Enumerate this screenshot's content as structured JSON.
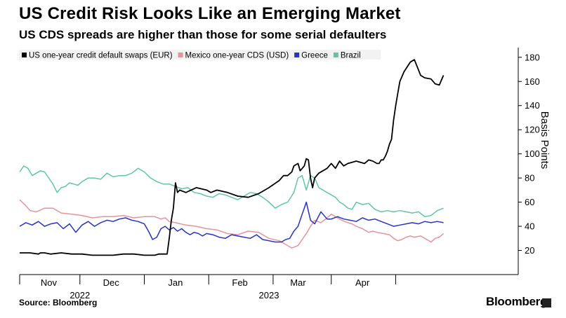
{
  "title": "US Credit Risk Looks Like an Emerging Market",
  "subtitle": "US CDS spreads are higher than those for some serial defaulters",
  "source": "Source: Bloomberg",
  "brand": "Bloomberg",
  "chart_data": {
    "type": "line",
    "title": "US Credit Risk Looks Like an Emerging Market",
    "subtitle": "US CDS spreads are higher than those for some serial defaulters",
    "xlabel": "",
    "ylabel": "Basis Points",
    "ylim": [
      0,
      188
    ],
    "yticks": [
      20,
      40,
      60,
      80,
      100,
      120,
      140,
      160,
      180
    ],
    "xlim": [
      0,
      240
    ],
    "x_month_ticks": [
      {
        "label": "Nov",
        "x": 14
      },
      {
        "label": "Dec",
        "x": 44
      },
      {
        "label": "Jan",
        "x": 75
      },
      {
        "label": "Feb",
        "x": 106
      },
      {
        "label": "Mar",
        "x": 134
      },
      {
        "label": "Apr",
        "x": 165
      }
    ],
    "x_year_labels": [
      {
        "label": "2022",
        "x": 29
      },
      {
        "label": "2023",
        "x": 120
      }
    ],
    "x_separators": [
      0,
      29,
      60,
      91,
      122,
      150,
      181
    ],
    "x_unit": "days since 2022-10-18",
    "legend_position": "top-left",
    "grid": false,
    "series": [
      {
        "name": "US one-year credit default swaps (EUR)",
        "color": "#000000",
        "x": [
          0,
          5,
          9,
          10,
          12,
          15,
          20,
          25,
          30,
          35,
          40,
          45,
          50,
          55,
          60,
          65,
          67,
          68,
          69,
          70,
          71,
          72,
          73,
          74,
          75,
          76,
          77,
          80,
          85,
          90,
          92,
          95,
          100,
          105,
          110,
          115,
          120,
          125,
          127,
          129,
          131,
          132,
          134,
          135,
          137,
          138,
          139,
          140,
          141,
          142,
          144,
          146,
          148,
          150,
          152,
          154,
          156,
          158,
          160,
          162,
          164,
          166,
          168,
          170,
          172,
          173,
          174,
          175,
          176,
          177,
          178,
          179,
          180,
          181,
          182,
          183,
          185,
          188,
          190,
          193,
          195,
          198,
          200,
          202,
          204
        ],
        "values": [
          18,
          18,
          17,
          18,
          18,
          17,
          18,
          17,
          17,
          16,
          16,
          16,
          17,
          17,
          16,
          16,
          17,
          17,
          17,
          17,
          17,
          30,
          45,
          55,
          76,
          68,
          70,
          68,
          72,
          70,
          68,
          70,
          68,
          65,
          64,
          67,
          72,
          78,
          82,
          82,
          85,
          90,
          92,
          86,
          90,
          96,
          95,
          80,
          72,
          80,
          84,
          86,
          88,
          92,
          88,
          94,
          90,
          92,
          93,
          94,
          93,
          92,
          95,
          94,
          92,
          92,
          95,
          95,
          98,
          102,
          108,
          112,
          128,
          140,
          150,
          160,
          168,
          176,
          178,
          165,
          163,
          162,
          158,
          157,
          165
        ]
      },
      {
        "name": "Mexico one-year CDS (USD)",
        "color": "#e8939b",
        "x": [
          0,
          3,
          5,
          8,
          12,
          16,
          20,
          25,
          30,
          35,
          40,
          45,
          50,
          55,
          60,
          65,
          68,
          70,
          72,
          75,
          80,
          85,
          90,
          95,
          100,
          105,
          110,
          115,
          120,
          125,
          128,
          131,
          134,
          136,
          138,
          140,
          142,
          145,
          148,
          150,
          153,
          155,
          158,
          160,
          162,
          165,
          168,
          170,
          172,
          175,
          178,
          180,
          182,
          184,
          186,
          188,
          190,
          193,
          195,
          198,
          200,
          202,
          204
        ],
        "values": [
          62,
          57,
          53,
          52,
          55,
          55,
          51,
          50,
          49,
          47,
          48,
          48,
          49,
          47,
          48,
          48,
          46,
          47,
          44,
          43,
          41,
          40,
          38,
          37,
          34,
          33,
          36,
          35,
          30,
          28,
          25,
          22,
          24,
          29,
          34,
          40,
          45,
          43,
          47,
          50,
          47,
          45,
          43,
          42,
          40,
          38,
          35,
          36,
          35,
          34,
          33,
          30,
          28,
          29,
          31,
          32,
          31,
          32,
          30,
          27,
          30,
          31,
          34
        ]
      },
      {
        "name": "Greece",
        "color": "#2533c9",
        "x": [
          0,
          3,
          6,
          9,
          12,
          15,
          18,
          21,
          24,
          27,
          30,
          33,
          36,
          39,
          42,
          45,
          48,
          51,
          54,
          57,
          60,
          62,
          64,
          66,
          68,
          70,
          72,
          74,
          76,
          78,
          80,
          82,
          84,
          86,
          88,
          90,
          93,
          96,
          99,
          102,
          105,
          108,
          111,
          114,
          117,
          120,
          123,
          126,
          128,
          130,
          132,
          134,
          136,
          137,
          138,
          140,
          142,
          145,
          148,
          150,
          153,
          156,
          159,
          162,
          165,
          168,
          171,
          174,
          177,
          180,
          183,
          186,
          189,
          192,
          195,
          198,
          201,
          204
        ],
        "values": [
          40,
          43,
          41,
          44,
          40,
          42,
          43,
          38,
          42,
          35,
          41,
          44,
          40,
          43,
          45,
          44,
          46,
          47,
          45,
          44,
          42,
          36,
          29,
          31,
          38,
          40,
          37,
          39,
          36,
          38,
          35,
          33,
          35,
          34,
          32,
          34,
          33,
          31,
          30,
          33,
          32,
          31,
          30,
          33,
          29,
          28,
          27,
          27,
          29,
          30,
          36,
          40,
          50,
          55,
          60,
          45,
          42,
          52,
          46,
          46,
          48,
          46,
          45,
          44,
          47,
          45,
          46,
          44,
          42,
          40,
          41,
          42,
          43,
          42,
          44,
          43,
          44,
          43
        ]
      },
      {
        "name": "Brazil",
        "color": "#5fc7a8",
        "x": [
          0,
          2,
          4,
          6,
          8,
          10,
          12,
          14,
          16,
          18,
          20,
          22,
          24,
          26,
          28,
          30,
          33,
          36,
          39,
          42,
          45,
          48,
          51,
          54,
          57,
          60,
          63,
          66,
          69,
          72,
          75,
          78,
          81,
          84,
          87,
          90,
          93,
          96,
          99,
          102,
          105,
          108,
          111,
          114,
          117,
          120,
          123,
          126,
          129,
          132,
          134,
          136,
          138,
          140,
          142,
          144,
          146,
          148,
          150,
          152,
          154,
          156,
          158,
          160,
          162,
          165,
          168,
          171,
          174,
          177,
          180,
          183,
          186,
          189,
          192,
          195,
          198,
          201,
          204
        ],
        "values": [
          85,
          90,
          88,
          82,
          84,
          86,
          85,
          80,
          75,
          68,
          72,
          73,
          76,
          75,
          74,
          77,
          80,
          80,
          79,
          84,
          81,
          82,
          82,
          84,
          88,
          85,
          80,
          77,
          75,
          75,
          73,
          71,
          72,
          68,
          67,
          65,
          64,
          67,
          66,
          64,
          62,
          65,
          68,
          67,
          64,
          60,
          55,
          58,
          60,
          68,
          80,
          82,
          70,
          82,
          80,
          72,
          70,
          68,
          66,
          64,
          60,
          58,
          55,
          54,
          60,
          58,
          59,
          54,
          52,
          53,
          52,
          53,
          52,
          51,
          52,
          48,
          49,
          53,
          55
        ]
      }
    ]
  }
}
